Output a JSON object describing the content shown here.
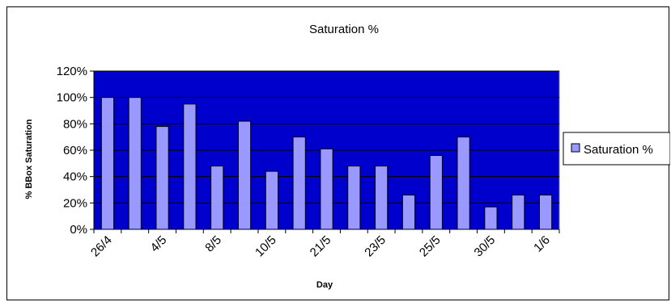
{
  "chart_data": {
    "type": "bar",
    "title": "Saturation %",
    "xlabel": "Day",
    "ylabel": "% BBox Saturation",
    "categories": [
      "26/4",
      "",
      "4/5",
      "",
      "8/5",
      "",
      "10/5",
      "",
      "21/5",
      "",
      "23/5",
      "",
      "25/5",
      "",
      "30/5",
      "",
      "1/6"
    ],
    "series": [
      {
        "name": "Saturation %",
        "values": [
          100,
          100,
          78,
          95,
          48,
          82,
          44,
          70,
          61,
          48,
          48,
          26,
          56,
          70,
          17,
          26,
          26
        ]
      }
    ],
    "ylim": [
      0,
      120
    ],
    "yticks": [
      "0%",
      "20%",
      "40%",
      "60%",
      "80%",
      "100%",
      "120%"
    ],
    "grid": true,
    "legend": "right",
    "colors": {
      "plot_background": "#0000CC",
      "bar_fill": "#9999FF",
      "bar_stroke": "#000000",
      "grid": "#000000"
    }
  }
}
